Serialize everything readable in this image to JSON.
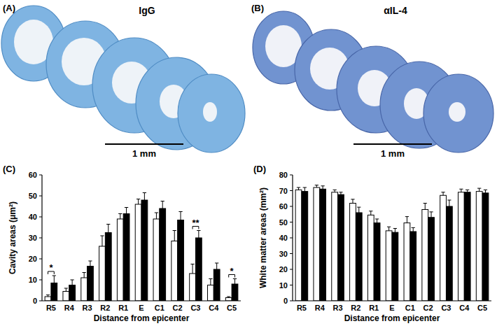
{
  "images": [
    {
      "panel": "(A)",
      "title": "IgG",
      "scale_bar": "1 mm"
    },
    {
      "panel": "(B)",
      "title": "αIL-4",
      "scale_bar": "1 mm"
    }
  ],
  "chart_data": [
    {
      "type": "bar",
      "panel": "(C)",
      "x_label": "Distance from epicenter",
      "y_label": "Cavity areas (μm²)",
      "categories": [
        "R5",
        "R4",
        "R3",
        "R2",
        "R1",
        "E",
        "C1",
        "C2",
        "C3",
        "C4",
        "C5"
      ],
      "series": [
        {
          "color": "#ffffff",
          "values": [
            2,
            4.5,
            11,
            26,
            39,
            46,
            39,
            28.5,
            13,
            7.5,
            1.5
          ],
          "errors": [
            0.8,
            1.5,
            2.5,
            5,
            2.5,
            2.5,
            3,
            5,
            4.5,
            3,
            0.5
          ]
        },
        {
          "color": "#000000",
          "values": [
            8.5,
            7.5,
            16.5,
            32.5,
            41.5,
            48,
            44,
            38.5,
            30,
            15,
            8
          ],
          "errors": [
            3.5,
            2.5,
            2.5,
            4,
            3,
            3.5,
            3.5,
            4,
            3.5,
            3,
            2.5
          ]
        }
      ],
      "annotations": [
        {
          "category": "R5",
          "text": "*"
        },
        {
          "category": "C3",
          "text": "**"
        },
        {
          "category": "C5",
          "text": "*"
        }
      ],
      "ylim": [
        0,
        60
      ],
      "yticks": [
        0,
        10,
        20,
        30,
        40,
        50,
        60
      ],
      "grid": false
    },
    {
      "type": "bar",
      "panel": "(D)",
      "x_label": "Distance from epicenter",
      "y_label": "White matter areas (mm²)",
      "categories": [
        "R5",
        "R4",
        "R3",
        "R2",
        "R1",
        "E",
        "C1",
        "C2",
        "C3",
        "C4",
        "C5"
      ],
      "series": [
        {
          "color": "#ffffff",
          "values": [
            70.5,
            72,
            69,
            62,
            54.5,
            44.5,
            49.5,
            58,
            67,
            69,
            69.5
          ],
          "errors": [
            1.5,
            1.5,
            1.5,
            2.5,
            2.5,
            2.5,
            4,
            4,
            2,
            2,
            2
          ]
        },
        {
          "color": "#000000",
          "values": [
            69.5,
            71,
            67.5,
            56,
            49.5,
            43.5,
            44,
            53,
            60,
            69,
            68.5
          ],
          "errors": [
            2.5,
            2,
            1.5,
            3.5,
            2.5,
            2.5,
            2.5,
            3.5,
            4,
            1.5,
            2
          ]
        }
      ],
      "ylim": [
        0,
        80
      ],
      "yticks": [
        0,
        10,
        20,
        30,
        40,
        50,
        60,
        70,
        80
      ],
      "grid": false
    }
  ]
}
